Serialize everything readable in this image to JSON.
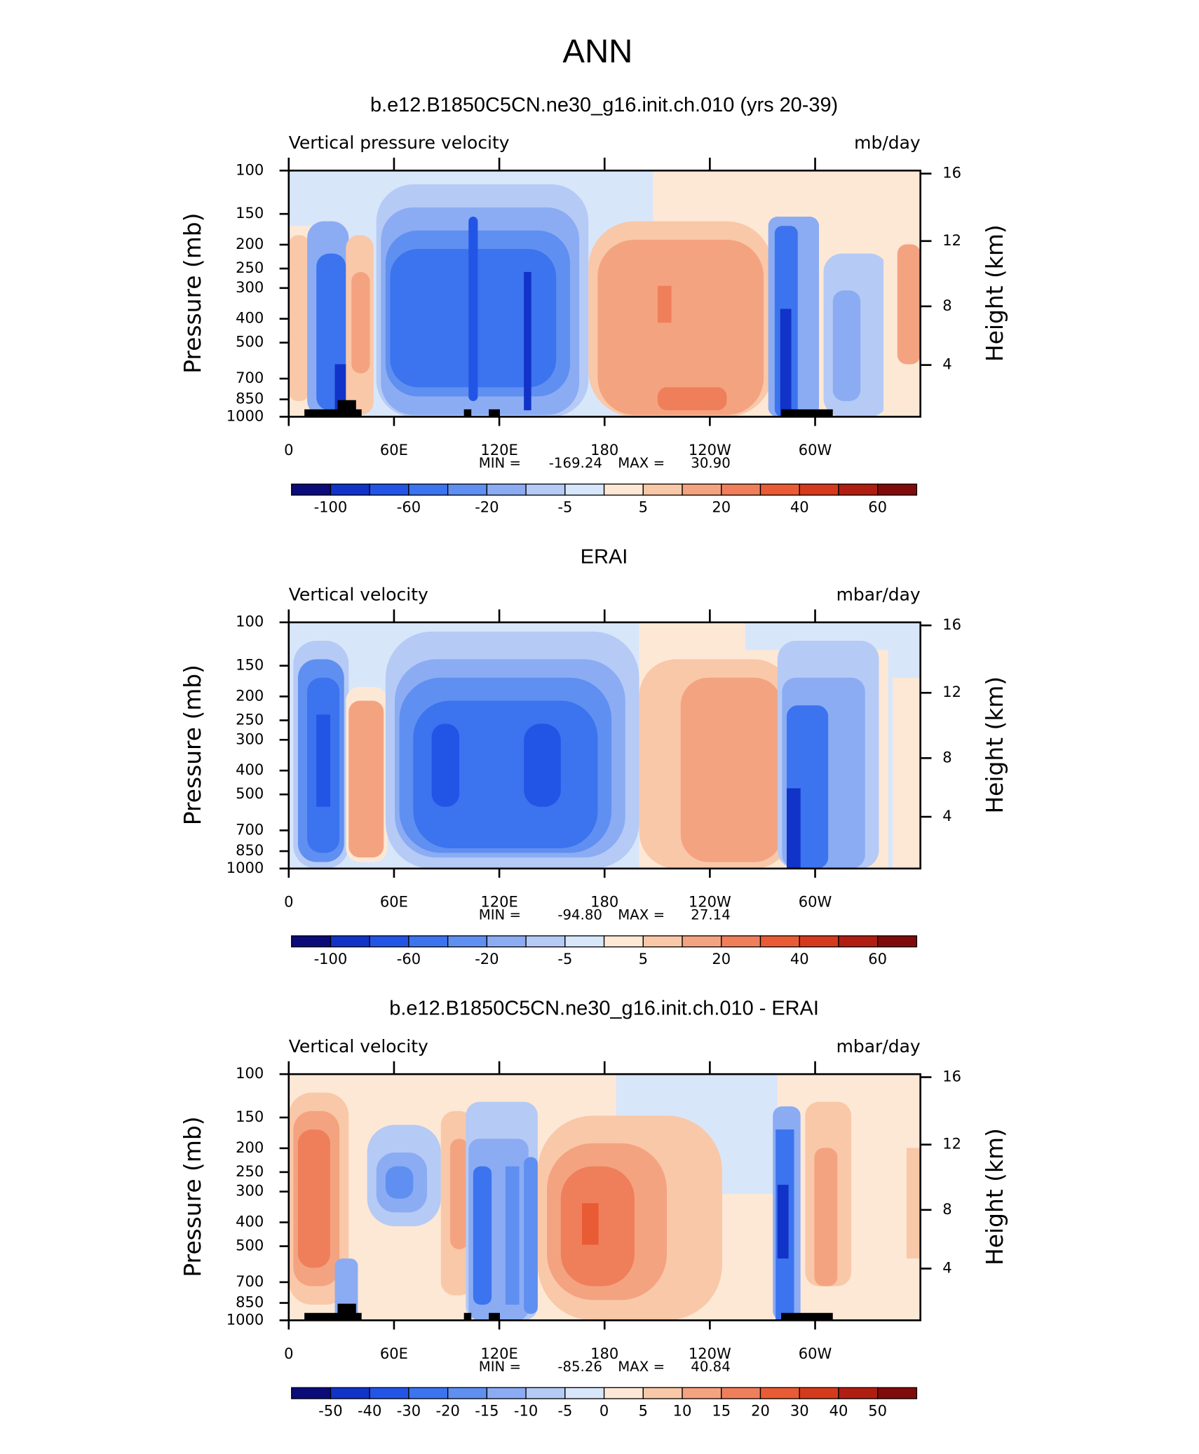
{
  "title": "ANN",
  "chart_data": [
    {
      "type": "contour",
      "title": "b.e12.B1850C5CN.ne30_g16.init.ch.010 (yrs 20-39)",
      "left_string": "Vertical pressure velocity",
      "right_string": "mb/day",
      "ylabel": "Pressure (mb)",
      "y2label": "Height (km)",
      "xlim": [
        0,
        360
      ],
      "xticks": [
        0,
        {
          "value": 60,
          "label": "60E"
        },
        {
          "value": 120,
          "label": "120E"
        },
        180,
        {
          "value": 240,
          "label": "120W"
        },
        {
          "value": 300,
          "label": "60W"
        }
      ],
      "ylim": [
        1000,
        100
      ],
      "log_y": true,
      "yticks": [
        100,
        150,
        200,
        250,
        300,
        400,
        500,
        700,
        850,
        1000
      ],
      "y2lim": [
        0.11,
        16.18
      ],
      "y2ticks": [
        4,
        8,
        12,
        16
      ],
      "min_label": "MIN =",
      "min": -169.24,
      "max_label": "MAX =",
      "max": {
        "value": 30.9,
        "label": "30.90"
      },
      "colorbar": {
        "labels": [
          -100,
          -60,
          -20,
          -5,
          5,
          20,
          40,
          60
        ],
        "colors": [
          "#0b0b7a",
          "#1133c8",
          "#2255e6",
          "#3c73ee",
          "#5f8ff0",
          "#8bacf3",
          "#b5caf5",
          "#d8e6fa",
          "#fde8d6",
          "#f9c8a8",
          "#f4a380",
          "#ef7f5a",
          "#e95b35",
          "#d63a1c",
          "#b01e12",
          "#800b0b"
        ]
      }
    },
    {
      "type": "contour",
      "title": "ERAI",
      "left_string": "Vertical velocity",
      "right_string": "mbar/day",
      "ylabel": "Pressure (mb)",
      "y2label": "Height (km)",
      "xlim": [
        0,
        360
      ],
      "xticks": [
        0,
        {
          "value": 60,
          "label": "60E"
        },
        {
          "value": 120,
          "label": "120E"
        },
        180,
        {
          "value": 240,
          "label": "120W"
        },
        {
          "value": 300,
          "label": "60W"
        }
      ],
      "ylim": [
        1000,
        100
      ],
      "log_y": true,
      "yticks": [
        100,
        150,
        200,
        250,
        300,
        400,
        500,
        700,
        850,
        1000
      ],
      "y2lim": [
        0.11,
        16.18
      ],
      "y2ticks": [
        4,
        8,
        12,
        16
      ],
      "min_label": "MIN =",
      "min": {
        "value": -94.8,
        "label": "-94.80"
      },
      "max_label": "MAX =",
      "max": 27.14,
      "colorbar": {
        "labels": [
          -100,
          -60,
          -20,
          -5,
          5,
          20,
          40,
          60
        ],
        "colors": [
          "#0b0b7a",
          "#1133c8",
          "#2255e6",
          "#3c73ee",
          "#5f8ff0",
          "#8bacf3",
          "#b5caf5",
          "#d8e6fa",
          "#fde8d6",
          "#f9c8a8",
          "#f4a380",
          "#ef7f5a",
          "#e95b35",
          "#d63a1c",
          "#b01e12",
          "#800b0b"
        ]
      }
    },
    {
      "type": "contour",
      "title": "b.e12.B1850C5CN.ne30_g16.init.ch.010 - ERAI",
      "left_string": "Vertical velocity",
      "right_string": "mbar/day",
      "ylabel": "Pressure (mb)",
      "y2label": "Height (km)",
      "xlim": [
        0,
        360
      ],
      "xticks": [
        0,
        {
          "value": 60,
          "label": "60E"
        },
        {
          "value": 120,
          "label": "120E"
        },
        180,
        {
          "value": 240,
          "label": "120W"
        },
        {
          "value": 300,
          "label": "60W"
        }
      ],
      "ylim": [
        1000,
        100
      ],
      "log_y": true,
      "yticks": [
        100,
        150,
        200,
        250,
        300,
        400,
        500,
        700,
        850,
        1000
      ],
      "y2lim": [
        0.11,
        16.18
      ],
      "y2ticks": [
        4,
        8,
        12,
        16
      ],
      "min_label": "MIN =",
      "min": -85.26,
      "max_label": "MAX =",
      "max": 40.84,
      "colorbar": {
        "labels": [
          -50,
          -40,
          -30,
          -20,
          -15,
          -10,
          -5,
          0,
          5,
          10,
          15,
          20,
          30,
          40,
          50
        ],
        "colors": [
          "#0b0b7a",
          "#1133c8",
          "#2255e6",
          "#3c73ee",
          "#5f8ff0",
          "#8bacf3",
          "#b5caf5",
          "#d8e6fa",
          "#fde8d6",
          "#f9c8a8",
          "#f4a380",
          "#ef7f5a",
          "#e95b35",
          "#d63a1c",
          "#b01e12",
          "#800b0b"
        ]
      }
    }
  ]
}
